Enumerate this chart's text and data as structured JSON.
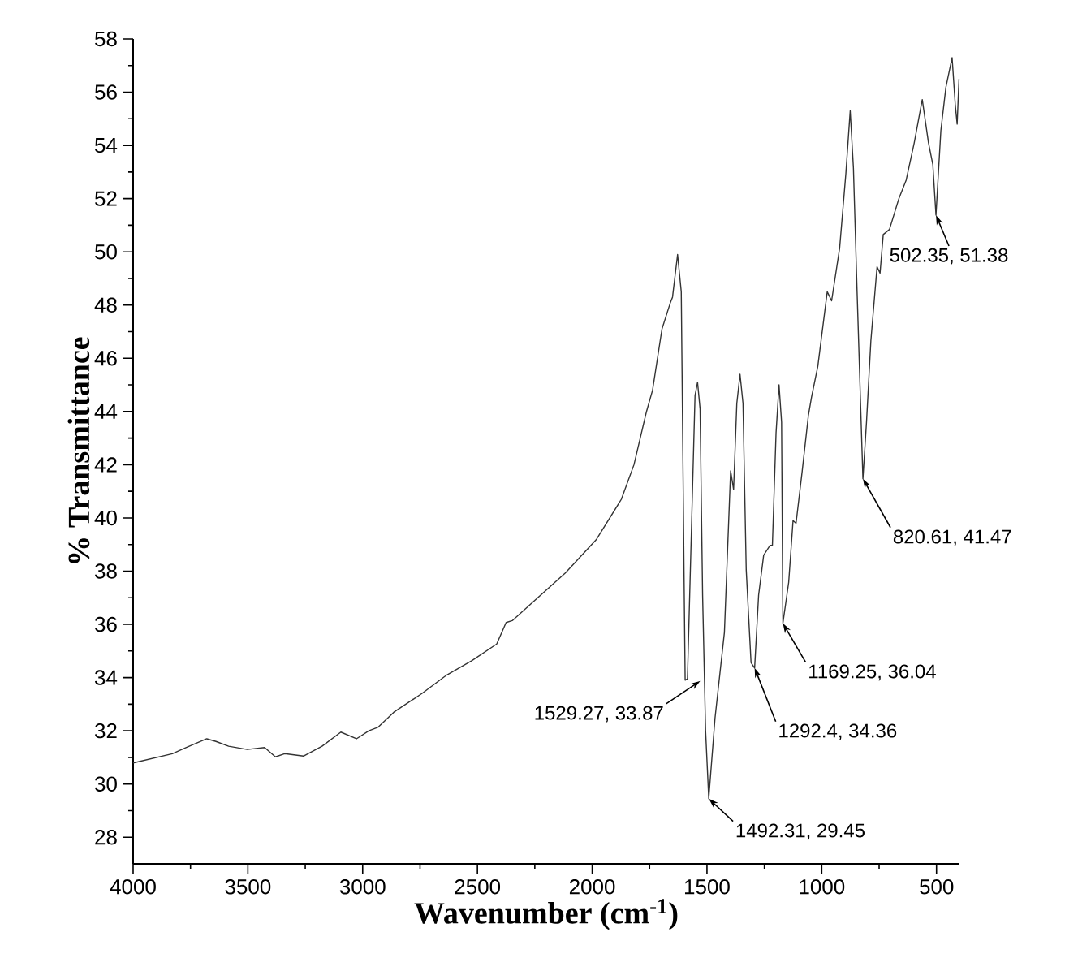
{
  "chart_data": {
    "type": "line",
    "xlabel": "Wavenumber (cm$^{-1}$)",
    "ylabel": "% Transmittance",
    "xlim": [
      4000,
      400
    ],
    "ylim": [
      27,
      58
    ],
    "xticks": [
      4000,
      3500,
      3000,
      2500,
      2000,
      1500,
      1000,
      500
    ],
    "yticks": [
      28,
      30,
      32,
      34,
      36,
      38,
      40,
      42,
      44,
      46,
      48,
      50,
      52,
      54,
      56,
      58
    ],
    "series": [
      {
        "color": "#333333",
        "x": [
          4000,
          3829,
          3774,
          3679,
          3639,
          3584,
          3503,
          3427,
          3380,
          3340,
          3258,
          3177,
          3095,
          3027,
          2973,
          2932,
          2864,
          2742,
          2633,
          2525,
          2416,
          2375,
          2348,
          2253,
          2117,
          1981,
          1873,
          1818,
          1764,
          1737,
          1696,
          1661,
          1650,
          1628,
          1612,
          1600,
          1595,
          1585,
          1552,
          1541,
          1530,
          1519,
          1506,
          1492.31,
          1465,
          1424,
          1397,
          1384,
          1370,
          1356,
          1343,
          1329,
          1308,
          1292.4,
          1275,
          1253,
          1225,
          1215,
          1199,
          1186,
          1175,
          1169.25,
          1144,
          1125,
          1112,
          1085,
          1058,
          1044,
          1017,
          976,
          957,
          922,
          895,
          876,
          862,
          846,
          820.61,
          805,
          786,
          759,
          746,
          732,
          705,
          664,
          632,
          597,
          562,
          535,
          516,
          502.35,
          481,
          459,
          432,
          418,
          410,
          402
        ],
        "values": [
          30.79,
          31.14,
          31.35,
          31.7,
          31.6,
          31.42,
          31.3,
          31.37,
          31.02,
          31.14,
          31.05,
          31.42,
          31.95,
          31.7,
          32.0,
          32.14,
          32.7,
          33.4,
          34.1,
          34.63,
          35.26,
          36.07,
          36.14,
          36.88,
          37.93,
          39.2,
          40.7,
          42.0,
          43.98,
          44.8,
          47.1,
          48.05,
          48.3,
          49.9,
          48.5,
          38.0,
          33.9,
          33.95,
          44.6,
          45.1,
          44.1,
          37.1,
          32.0,
          29.45,
          32.47,
          35.7,
          41.77,
          41.07,
          44.3,
          45.4,
          44.3,
          38.05,
          34.56,
          34.36,
          37.1,
          38.6,
          38.97,
          38.97,
          43.2,
          45.0,
          43.6,
          36.04,
          37.58,
          39.9,
          39.8,
          41.77,
          43.86,
          44.56,
          45.7,
          48.5,
          48.16,
          50.14,
          52.93,
          55.3,
          53.16,
          48.5,
          41.47,
          43.6,
          46.65,
          49.44,
          49.2,
          50.65,
          50.84,
          52.0,
          52.7,
          54.1,
          55.72,
          54.1,
          53.28,
          51.38,
          54.56,
          56.19,
          57.3,
          55.5,
          54.8,
          56.5
        ]
      }
    ],
    "annotations": [
      {
        "text": "502.35, 51.38",
        "x": 502.35,
        "y": 51.38
      },
      {
        "text": "820.61, 41.47",
        "x": 820.61,
        "y": 41.47
      },
      {
        "text": "1169.25, 36.04",
        "x": 1169.25,
        "y": 36.04
      },
      {
        "text": "1292.4, 34.36",
        "x": 1292.4,
        "y": 34.36
      },
      {
        "text": "1492.31, 29.45",
        "x": 1492.31,
        "y": 29.45
      },
      {
        "text": "1529.27, 33.87",
        "x": 1529.27,
        "y": 33.87
      }
    ]
  }
}
